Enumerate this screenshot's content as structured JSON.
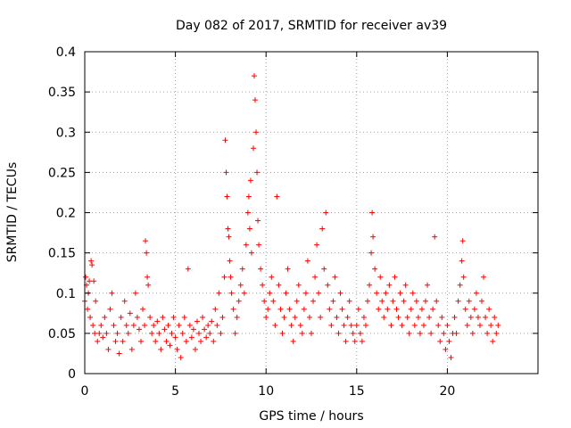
{
  "chart_data": {
    "type": "scatter",
    "title": "Day 082 of 2017, SRMTID for receiver av39",
    "xlabel": "GPS time / hours",
    "ylabel": "SRMTID / TECUs",
    "xlim": [
      0,
      25
    ],
    "ylim": [
      0,
      0.4
    ],
    "xticks": [
      "0",
      "5",
      "10",
      "15",
      "20"
    ],
    "yticks": [
      "0",
      "0.05",
      "0.1",
      "0.15",
      "0.2",
      "0.25",
      "0.3",
      "0.35",
      "0.4"
    ],
    "grid": true,
    "marker": "plus",
    "color": "#ff0000",
    "series": [
      {
        "name": "SRMTID",
        "points": [
          [
            0.0,
            0.09
          ],
          [
            0.05,
            0.12
          ],
          [
            0.1,
            0.11
          ],
          [
            0.15,
            0.08
          ],
          [
            0.2,
            0.1
          ],
          [
            0.25,
            0.115
          ],
          [
            0.3,
            0.07
          ],
          [
            0.35,
            0.14
          ],
          [
            0.4,
            0.135
          ],
          [
            0.45,
            0.06
          ],
          [
            0.5,
            0.115
          ],
          [
            0.55,
            0.05
          ],
          [
            0.6,
            0.09
          ],
          [
            0.7,
            0.04
          ],
          [
            0.8,
            0.05
          ],
          [
            0.9,
            0.06
          ],
          [
            1.0,
            0.045
          ],
          [
            1.1,
            0.07
          ],
          [
            1.2,
            0.05
          ],
          [
            1.3,
            0.03
          ],
          [
            1.4,
            0.08
          ],
          [
            1.5,
            0.1
          ],
          [
            1.6,
            0.06
          ],
          [
            1.7,
            0.04
          ],
          [
            1.8,
            0.05
          ],
          [
            1.9,
            0.025
          ],
          [
            2.0,
            0.07
          ],
          [
            2.1,
            0.04
          ],
          [
            2.2,
            0.09
          ],
          [
            2.3,
            0.06
          ],
          [
            2.4,
            0.05
          ],
          [
            2.5,
            0.075
          ],
          [
            2.6,
            0.03
          ],
          [
            2.7,
            0.06
          ],
          [
            2.8,
            0.1
          ],
          [
            2.9,
            0.07
          ],
          [
            3.0,
            0.055
          ],
          [
            3.1,
            0.04
          ],
          [
            3.2,
            0.08
          ],
          [
            3.3,
            0.06
          ],
          [
            3.35,
            0.165
          ],
          [
            3.4,
            0.15
          ],
          [
            3.45,
            0.12
          ],
          [
            3.5,
            0.11
          ],
          [
            3.6,
            0.07
          ],
          [
            3.7,
            0.05
          ],
          [
            3.8,
            0.06
          ],
          [
            3.9,
            0.04
          ],
          [
            4.0,
            0.065
          ],
          [
            4.1,
            0.05
          ],
          [
            4.2,
            0.03
          ],
          [
            4.3,
            0.07
          ],
          [
            4.4,
            0.055
          ],
          [
            4.5,
            0.04
          ],
          [
            4.6,
            0.06
          ],
          [
            4.7,
            0.035
          ],
          [
            4.8,
            0.05
          ],
          [
            4.9,
            0.07
          ],
          [
            5.0,
            0.045
          ],
          [
            5.1,
            0.03
          ],
          [
            5.2,
            0.06
          ],
          [
            5.3,
            0.02
          ],
          [
            5.4,
            0.05
          ],
          [
            5.5,
            0.07
          ],
          [
            5.6,
            0.04
          ],
          [
            5.7,
            0.13
          ],
          [
            5.8,
            0.06
          ],
          [
            5.9,
            0.045
          ],
          [
            6.0,
            0.055
          ],
          [
            6.1,
            0.03
          ],
          [
            6.2,
            0.065
          ],
          [
            6.3,
            0.05
          ],
          [
            6.4,
            0.04
          ],
          [
            6.5,
            0.07
          ],
          [
            6.6,
            0.055
          ],
          [
            6.7,
            0.045
          ],
          [
            6.8,
            0.06
          ],
          [
            6.9,
            0.05
          ],
          [
            7.0,
            0.065
          ],
          [
            7.1,
            0.04
          ],
          [
            7.2,
            0.08
          ],
          [
            7.3,
            0.06
          ],
          [
            7.4,
            0.1
          ],
          [
            7.5,
            0.05
          ],
          [
            7.6,
            0.07
          ],
          [
            7.7,
            0.12
          ],
          [
            7.75,
            0.29
          ],
          [
            7.8,
            0.25
          ],
          [
            7.85,
            0.22
          ],
          [
            7.9,
            0.18
          ],
          [
            7.95,
            0.17
          ],
          [
            8.0,
            0.14
          ],
          [
            8.05,
            0.12
          ],
          [
            8.1,
            0.1
          ],
          [
            8.2,
            0.08
          ],
          [
            8.3,
            0.05
          ],
          [
            8.4,
            0.07
          ],
          [
            8.5,
            0.09
          ],
          [
            8.6,
            0.11
          ],
          [
            8.7,
            0.13
          ],
          [
            8.8,
            0.1
          ],
          [
            8.9,
            0.16
          ],
          [
            9.0,
            0.2
          ],
          [
            9.05,
            0.22
          ],
          [
            9.1,
            0.18
          ],
          [
            9.15,
            0.24
          ],
          [
            9.2,
            0.15
          ],
          [
            9.3,
            0.28
          ],
          [
            9.35,
            0.37
          ],
          [
            9.4,
            0.34
          ],
          [
            9.45,
            0.3
          ],
          [
            9.5,
            0.25
          ],
          [
            9.55,
            0.19
          ],
          [
            9.6,
            0.16
          ],
          [
            9.7,
            0.13
          ],
          [
            9.8,
            0.11
          ],
          [
            9.9,
            0.09
          ],
          [
            10.0,
            0.07
          ],
          [
            10.1,
            0.08
          ],
          [
            10.2,
            0.1
          ],
          [
            10.3,
            0.12
          ],
          [
            10.4,
            0.09
          ],
          [
            10.5,
            0.06
          ],
          [
            10.6,
            0.22
          ],
          [
            10.7,
            0.11
          ],
          [
            10.8,
            0.08
          ],
          [
            10.9,
            0.05
          ],
          [
            11.0,
            0.07
          ],
          [
            11.1,
            0.1
          ],
          [
            11.2,
            0.13
          ],
          [
            11.3,
            0.08
          ],
          [
            11.4,
            0.06
          ],
          [
            11.5,
            0.04
          ],
          [
            11.6,
            0.07
          ],
          [
            11.7,
            0.09
          ],
          [
            11.8,
            0.11
          ],
          [
            11.9,
            0.06
          ],
          [
            12.0,
            0.05
          ],
          [
            12.1,
            0.08
          ],
          [
            12.2,
            0.1
          ],
          [
            12.3,
            0.14
          ],
          [
            12.4,
            0.07
          ],
          [
            12.5,
            0.05
          ],
          [
            12.6,
            0.09
          ],
          [
            12.7,
            0.12
          ],
          [
            12.8,
            0.16
          ],
          [
            12.9,
            0.1
          ],
          [
            13.0,
            0.07
          ],
          [
            13.1,
            0.18
          ],
          [
            13.2,
            0.13
          ],
          [
            13.3,
            0.2
          ],
          [
            13.4,
            0.11
          ],
          [
            13.5,
            0.08
          ],
          [
            13.6,
            0.06
          ],
          [
            13.7,
            0.09
          ],
          [
            13.8,
            0.12
          ],
          [
            13.9,
            0.07
          ],
          [
            14.0,
            0.05
          ],
          [
            14.1,
            0.1
          ],
          [
            14.2,
            0.08
          ],
          [
            14.3,
            0.06
          ],
          [
            14.4,
            0.04
          ],
          [
            14.5,
            0.07
          ],
          [
            14.6,
            0.09
          ],
          [
            14.7,
            0.06
          ],
          [
            14.8,
            0.05
          ],
          [
            14.9,
            0.04
          ],
          [
            15.0,
            0.06
          ],
          [
            15.1,
            0.08
          ],
          [
            15.2,
            0.05
          ],
          [
            15.3,
            0.04
          ],
          [
            15.4,
            0.07
          ],
          [
            15.5,
            0.06
          ],
          [
            15.6,
            0.09
          ],
          [
            15.7,
            0.11
          ],
          [
            15.8,
            0.15
          ],
          [
            15.85,
            0.2
          ],
          [
            15.9,
            0.17
          ],
          [
            16.0,
            0.13
          ],
          [
            16.1,
            0.1
          ],
          [
            16.2,
            0.08
          ],
          [
            16.3,
            0.12
          ],
          [
            16.4,
            0.09
          ],
          [
            16.5,
            0.07
          ],
          [
            16.6,
            0.1
          ],
          [
            16.7,
            0.08
          ],
          [
            16.8,
            0.11
          ],
          [
            16.9,
            0.06
          ],
          [
            17.0,
            0.09
          ],
          [
            17.1,
            0.12
          ],
          [
            17.2,
            0.08
          ],
          [
            17.3,
            0.07
          ],
          [
            17.4,
            0.1
          ],
          [
            17.5,
            0.06
          ],
          [
            17.6,
            0.09
          ],
          [
            17.7,
            0.11
          ],
          [
            17.8,
            0.07
          ],
          [
            17.9,
            0.05
          ],
          [
            18.0,
            0.08
          ],
          [
            18.1,
            0.1
          ],
          [
            18.2,
            0.06
          ],
          [
            18.3,
            0.09
          ],
          [
            18.4,
            0.07
          ],
          [
            18.5,
            0.05
          ],
          [
            18.6,
            0.08
          ],
          [
            18.7,
            0.06
          ],
          [
            18.8,
            0.09
          ],
          [
            18.9,
            0.11
          ],
          [
            19.0,
            0.07
          ],
          [
            19.1,
            0.05
          ],
          [
            19.2,
            0.08
          ],
          [
            19.3,
            0.17
          ],
          [
            19.4,
            0.09
          ],
          [
            19.5,
            0.06
          ],
          [
            19.6,
            0.04
          ],
          [
            19.7,
            0.07
          ],
          [
            19.8,
            0.05
          ],
          [
            19.9,
            0.03
          ],
          [
            20.0,
            0.06
          ],
          [
            20.1,
            0.04
          ],
          [
            20.2,
            0.02
          ],
          [
            20.3,
            0.05
          ],
          [
            20.4,
            0.07
          ],
          [
            20.5,
            0.05
          ],
          [
            20.6,
            0.09
          ],
          [
            20.7,
            0.11
          ],
          [
            20.8,
            0.14
          ],
          [
            20.85,
            0.165
          ],
          [
            20.9,
            0.12
          ],
          [
            21.0,
            0.08
          ],
          [
            21.1,
            0.06
          ],
          [
            21.2,
            0.09
          ],
          [
            21.3,
            0.07
          ],
          [
            21.4,
            0.05
          ],
          [
            21.5,
            0.08
          ],
          [
            21.6,
            0.1
          ],
          [
            21.7,
            0.07
          ],
          [
            21.8,
            0.06
          ],
          [
            21.9,
            0.09
          ],
          [
            22.0,
            0.12
          ],
          [
            22.1,
            0.07
          ],
          [
            22.2,
            0.05
          ],
          [
            22.3,
            0.08
          ],
          [
            22.4,
            0.06
          ],
          [
            22.5,
            0.04
          ],
          [
            22.6,
            0.07
          ],
          [
            22.7,
            0.05
          ],
          [
            22.8,
            0.06
          ]
        ]
      }
    ]
  }
}
